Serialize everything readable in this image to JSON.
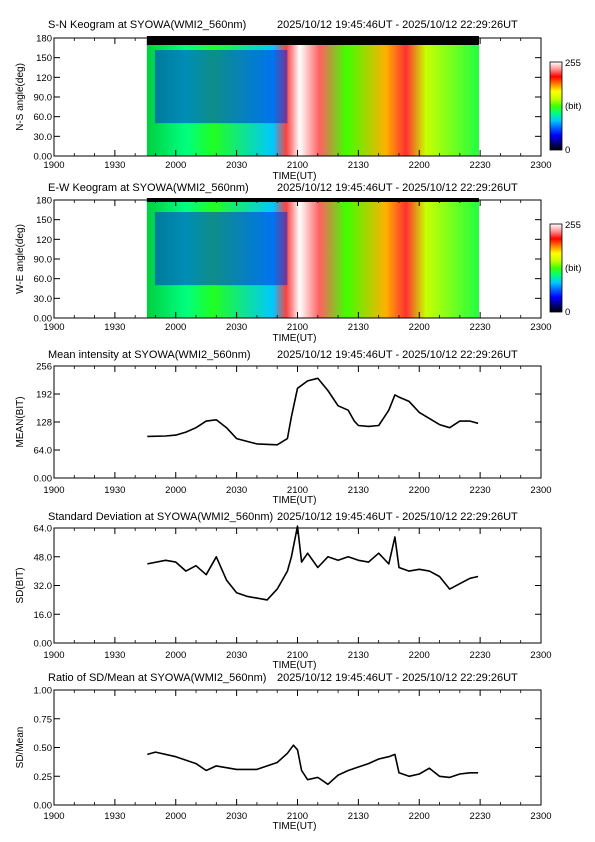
{
  "colorbar": {
    "max_label": "255",
    "mid_label": "(bit)",
    "min_label": "0",
    "colors": [
      "#000000",
      "#000080",
      "#0000ff",
      "#0060ff",
      "#00c8ff",
      "#00ff80",
      "#40ff00",
      "#c8ff00",
      "#ffff00",
      "#ff8000",
      "#ff0000",
      "#ff9090",
      "#ffffff"
    ]
  },
  "chart_data": [
    {
      "id": "sn",
      "type": "heatmap",
      "title": "S-N Keogram at SYOWA(WMI2_560nm)",
      "time_range": "2025/10/12 19:45:46UT - 2025/10/12 22:29:26UT",
      "xlabel": "TIME(UT)",
      "ylabel": "N-S angle(deg)",
      "x_ticks": [
        "1900",
        "1930",
        "2000",
        "2030",
        "2100",
        "2130",
        "2200",
        "2230",
        "2300"
      ],
      "y_ticks": [
        "0.00",
        "30.0",
        "60.0",
        "90.0",
        "120",
        "150",
        "180"
      ],
      "xlim": [
        "19:00",
        "23:00"
      ],
      "ylim": [
        0,
        180
      ],
      "data_start": "19:45:46",
      "data_end": "22:29:26",
      "colorbar_range": [
        0,
        255
      ]
    },
    {
      "id": "ew",
      "type": "heatmap",
      "title": "E-W Keogram at SYOWA(WMI2_560nm)",
      "time_range": "2025/10/12 19:45:46UT - 2025/10/12 22:29:26UT",
      "xlabel": "TIME(UT)",
      "ylabel": "W-E angle(deg)",
      "x_ticks": [
        "1900",
        "1930",
        "2000",
        "2030",
        "2100",
        "2130",
        "2200",
        "2230",
        "2300"
      ],
      "y_ticks": [
        "0.00",
        "30.0",
        "60.0",
        "90.0",
        "120",
        "150",
        "180"
      ],
      "xlim": [
        "19:00",
        "23:00"
      ],
      "ylim": [
        0,
        180
      ],
      "data_start": "19:45:46",
      "data_end": "22:29:26",
      "colorbar_range": [
        0,
        255
      ]
    },
    {
      "id": "mean",
      "type": "line",
      "title": "Mean intensity at SYOWA(WMI2_560nm)",
      "time_range": "2025/10/12 19:45:46UT - 2025/10/12 22:29:26UT",
      "xlabel": "TIME(UT)",
      "ylabel": "MEAN(BIT)",
      "x_ticks": [
        "1900",
        "1930",
        "2000",
        "2030",
        "2100",
        "2130",
        "2200",
        "2230",
        "2300"
      ],
      "y_ticks": [
        "0.00",
        "64.0",
        "128",
        "192",
        "256"
      ],
      "xlim": [
        "19:00",
        "23:00"
      ],
      "ylim": [
        0,
        256
      ],
      "x": [
        "19:46",
        "19:55",
        "20:00",
        "20:05",
        "20:10",
        "20:15",
        "20:20",
        "20:25",
        "20:30",
        "20:40",
        "20:50",
        "20:55",
        "20:57",
        "21:00",
        "21:05",
        "21:10",
        "21:15",
        "21:20",
        "21:25",
        "21:28",
        "21:30",
        "21:35",
        "21:40",
        "21:45",
        "21:48",
        "21:50",
        "21:55",
        "22:00",
        "22:10",
        "22:15",
        "22:20",
        "22:25",
        "22:29"
      ],
      "y": [
        95,
        96,
        98,
        105,
        115,
        130,
        133,
        115,
        90,
        78,
        76,
        90,
        140,
        205,
        222,
        228,
        200,
        165,
        155,
        130,
        120,
        118,
        120,
        155,
        190,
        185,
        175,
        150,
        122,
        115,
        130,
        130,
        125
      ]
    },
    {
      "id": "sd",
      "type": "line",
      "title": "Standard Deviation at SYOWA(WMI2_560nm)",
      "time_range": "2025/10/12 19:45:46UT - 2025/10/12 22:29:26UT",
      "xlabel": "TIME(UT)",
      "ylabel": "SD(BIT)",
      "x_ticks": [
        "1900",
        "1930",
        "2000",
        "2030",
        "2100",
        "2130",
        "2200",
        "2230",
        "2300"
      ],
      "y_ticks": [
        "0.00",
        "16.0",
        "32.0",
        "48.0",
        "64.0"
      ],
      "xlim": [
        "19:00",
        "23:00"
      ],
      "ylim": [
        0,
        64
      ],
      "x": [
        "19:46",
        "19:55",
        "20:00",
        "20:05",
        "20:10",
        "20:15",
        "20:20",
        "20:25",
        "20:30",
        "20:35",
        "20:40",
        "20:45",
        "20:50",
        "20:55",
        "20:57",
        "21:00",
        "21:02",
        "21:05",
        "21:10",
        "21:15",
        "21:20",
        "21:25",
        "21:30",
        "21:35",
        "21:40",
        "21:45",
        "21:48",
        "21:50",
        "21:55",
        "22:00",
        "22:05",
        "22:10",
        "22:15",
        "22:20",
        "22:25",
        "22:29"
      ],
      "y": [
        44,
        46,
        45,
        40,
        43,
        38,
        48,
        35,
        28,
        26,
        25,
        24,
        30,
        40,
        48,
        65,
        45,
        50,
        42,
        48,
        46,
        48,
        46,
        45,
        50,
        44,
        59,
        42,
        40,
        41,
        40,
        37,
        30,
        33,
        36,
        37
      ]
    },
    {
      "id": "ratio",
      "type": "line",
      "title": "Ratio of SD/Mean at SYOWA(WMI2_560nm)",
      "time_range": "2025/10/12 19:45:46UT - 2025/10/12 22:29:26UT",
      "xlabel": "TIME(UT)",
      "ylabel": "SD/Mean",
      "x_ticks": [
        "1900",
        "1930",
        "2000",
        "2030",
        "2100",
        "2130",
        "2200",
        "2230",
        "2300"
      ],
      "y_ticks": [
        "0.00",
        "0.25",
        "0.50",
        "0.75",
        "1.00"
      ],
      "xlim": [
        "19:00",
        "23:00"
      ],
      "ylim": [
        0,
        1
      ],
      "x": [
        "19:46",
        "19:50",
        "20:00",
        "20:10",
        "20:15",
        "20:20",
        "20:30",
        "20:40",
        "20:50",
        "20:55",
        "20:58",
        "21:00",
        "21:02",
        "21:05",
        "21:10",
        "21:15",
        "21:20",
        "21:25",
        "21:30",
        "21:35",
        "21:40",
        "21:45",
        "21:48",
        "21:50",
        "21:55",
        "22:00",
        "22:05",
        "22:10",
        "22:15",
        "22:20",
        "22:25",
        "22:29"
      ],
      "y": [
        0.44,
        0.46,
        0.42,
        0.36,
        0.3,
        0.34,
        0.31,
        0.31,
        0.37,
        0.45,
        0.52,
        0.48,
        0.3,
        0.22,
        0.24,
        0.18,
        0.26,
        0.3,
        0.33,
        0.36,
        0.4,
        0.42,
        0.44,
        0.28,
        0.25,
        0.27,
        0.32,
        0.25,
        0.24,
        0.27,
        0.28,
        0.28
      ]
    }
  ]
}
